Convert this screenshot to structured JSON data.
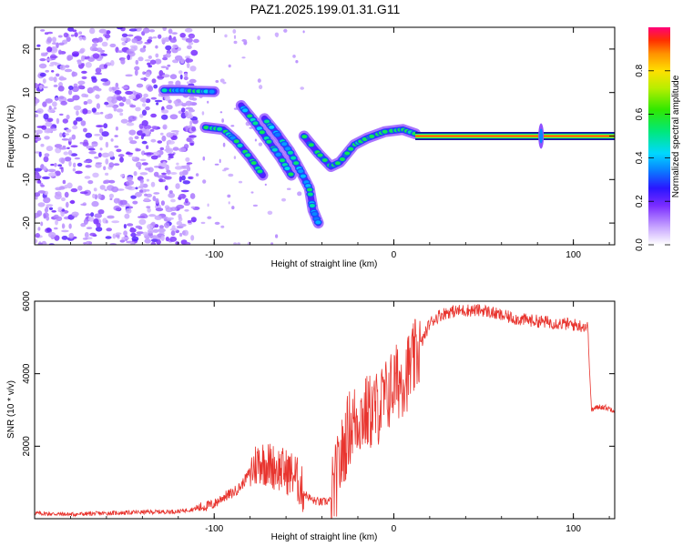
{
  "title": "PAZ1.2025.199.01.31.G11",
  "chart_data": [
    {
      "type": "heatmap",
      "xlabel": "Height of straight line (km)",
      "ylabel": "Frequency (Hz)",
      "xlim": [
        -200,
        123
      ],
      "ylim": [
        -25,
        25
      ],
      "xticks": [
        -100,
        0,
        100
      ],
      "yticks": [
        -20,
        -10,
        0,
        10,
        20
      ],
      "colorbar": {
        "label": "Normalized spectral amplitude",
        "range": [
          0,
          1
        ],
        "ticks": [
          0.0,
          0.2,
          0.4,
          0.6,
          0.8
        ],
        "colormap": "rainbow"
      },
      "features": [
        {
          "name": "noise_field",
          "x_range": [
            -200,
            -110
          ],
          "y_range": [
            -25,
            25
          ],
          "amplitude": 0.1
        },
        {
          "name": "track_1",
          "points": [
            [
              -128,
              10.5
            ],
            [
              -118,
              10.5
            ],
            [
              -110,
              10.3
            ],
            [
              -100,
              10.2
            ]
          ],
          "amplitude": 0.28
        },
        {
          "name": "track_2",
          "points": [
            [
              -105,
              2
            ],
            [
              -95,
              1.5
            ],
            [
              -88,
              -1
            ],
            [
              -80,
              -5
            ],
            [
              -73,
              -9
            ]
          ],
          "amplitude": 0.3
        },
        {
          "name": "track_3",
          "points": [
            [
              -85,
              7
            ],
            [
              -78,
              3.5
            ],
            [
              -70,
              -1
            ],
            [
              -63,
              -5
            ],
            [
              -57,
              -9
            ]
          ],
          "amplitude": 0.3
        },
        {
          "name": "track_4",
          "points": [
            [
              -72,
              4
            ],
            [
              -65,
              0.5
            ],
            [
              -58,
              -3.5
            ],
            [
              -52,
              -8
            ],
            [
              -47,
              -12
            ],
            [
              -45,
              -17
            ],
            [
              -42,
              -20
            ]
          ],
          "amplitude": 0.25
        },
        {
          "name": "dip_track",
          "points": [
            [
              -50,
              0
            ],
            [
              -42,
              -4
            ],
            [
              -35,
              -7
            ],
            [
              -30,
              -6
            ],
            [
              -22,
              -2
            ],
            [
              -15,
              -0.5
            ],
            [
              -5,
              1
            ],
            [
              5,
              1.5
            ],
            [
              12,
              0.5
            ]
          ],
          "amplitude": 0.45
        },
        {
          "name": "carrier_line",
          "x_range": [
            12,
            123
          ],
          "y": 0,
          "amplitude": 0.95
        },
        {
          "name": "spike",
          "x": 82,
          "y": 0,
          "amplitude": 0.35
        }
      ]
    },
    {
      "type": "line",
      "xlabel": "Height of straight line (km)",
      "ylabel": "SNR (10 * v/v)",
      "xlim": [
        -200,
        123
      ],
      "ylim": [
        0,
        6000
      ],
      "xticks": [
        -100,
        0,
        100
      ],
      "yticks": [
        2000,
        4000,
        6000
      ],
      "color": "#e8342e",
      "series": [
        {
          "x": [
            -200,
            -180,
            -160,
            -140,
            -120,
            -110,
            -100,
            -95,
            -90,
            -85,
            -80,
            -75,
            -70,
            -65,
            -60,
            -55,
            -50,
            -45,
            -40,
            -35,
            -30,
            -25,
            -20,
            -15,
            -10,
            -5,
            0,
            5,
            10,
            15,
            20,
            25,
            30,
            40,
            50,
            60,
            70,
            80,
            90,
            100,
            108,
            110,
            115,
            123
          ],
          "y": [
            150,
            120,
            150,
            180,
            200,
            280,
            400,
            600,
            700,
            900,
            1300,
            1600,
            1500,
            1400,
            1300,
            1200,
            700,
            500,
            450,
            500,
            1500,
            2500,
            2800,
            2900,
            3000,
            3300,
            3700,
            3900,
            4200,
            4800,
            5400,
            5600,
            5700,
            5750,
            5750,
            5600,
            5500,
            5450,
            5400,
            5350,
            5300,
            3000,
            3100,
            3000
          ]
        }
      ]
    }
  ]
}
